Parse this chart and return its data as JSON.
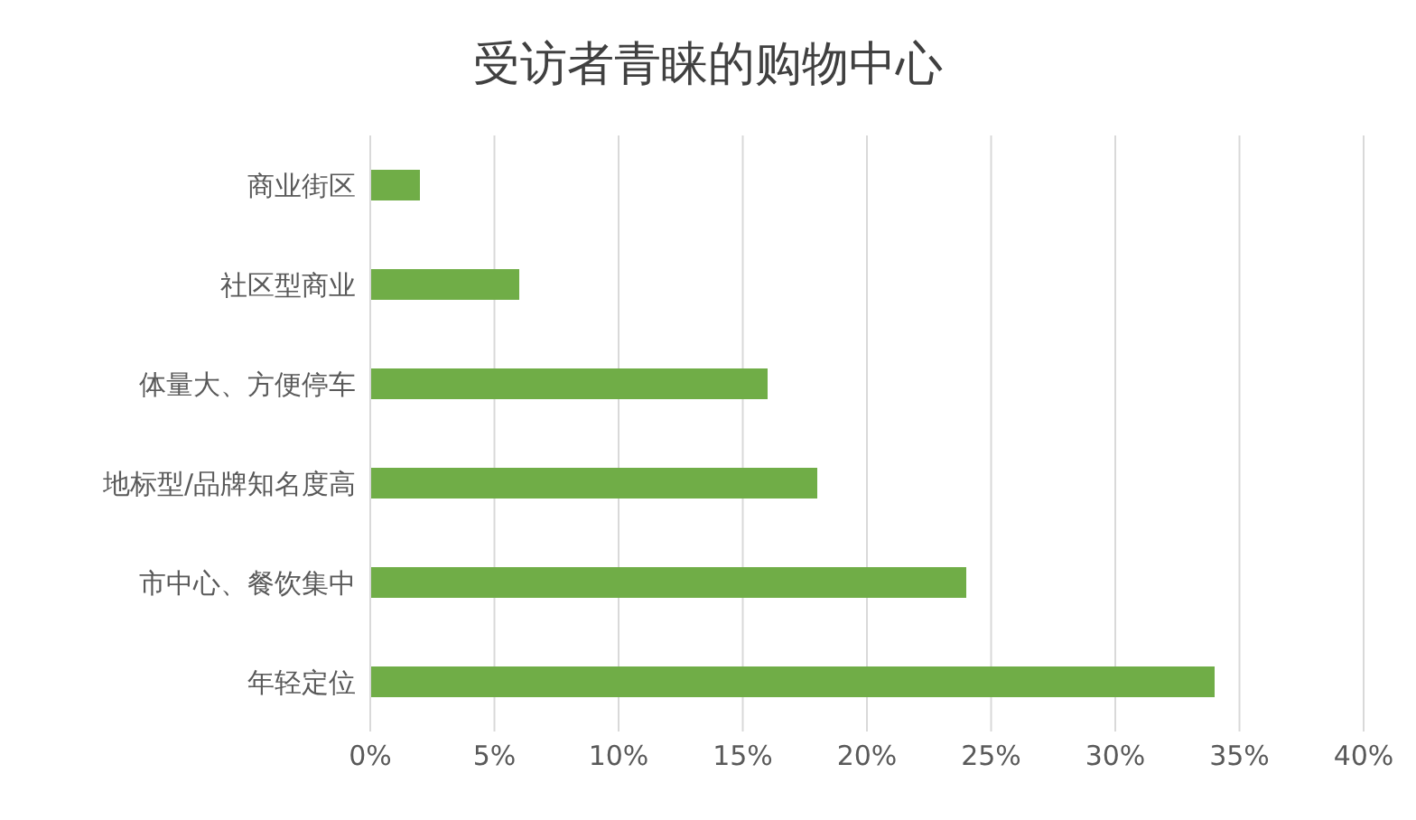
{
  "chart_data": {
    "type": "bar",
    "orientation": "horizontal",
    "title": "受访者青睐的购物中心",
    "categories": [
      "商业街区",
      "社区型商业",
      "体量大、方便停车",
      "地标型/品牌知名度高",
      "市中心、餐饮集中",
      "年轻定位"
    ],
    "values": [
      2,
      6,
      16,
      18,
      24,
      34
    ],
    "color": "#70ad47",
    "xlim": [
      0,
      40
    ],
    "xticks": [
      {
        "value": 0,
        "label": "0%"
      },
      {
        "value": 5,
        "label": "5%"
      },
      {
        "value": 10,
        "label": "10%"
      },
      {
        "value": 15,
        "label": "15%"
      },
      {
        "value": 20,
        "label": "20%"
      },
      {
        "value": 25,
        "label": "25%"
      },
      {
        "value": 30,
        "label": "30%"
      },
      {
        "value": 35,
        "label": "35%"
      },
      {
        "value": 40,
        "label": "40%"
      }
    ],
    "grid": "x",
    "legend": false
  }
}
